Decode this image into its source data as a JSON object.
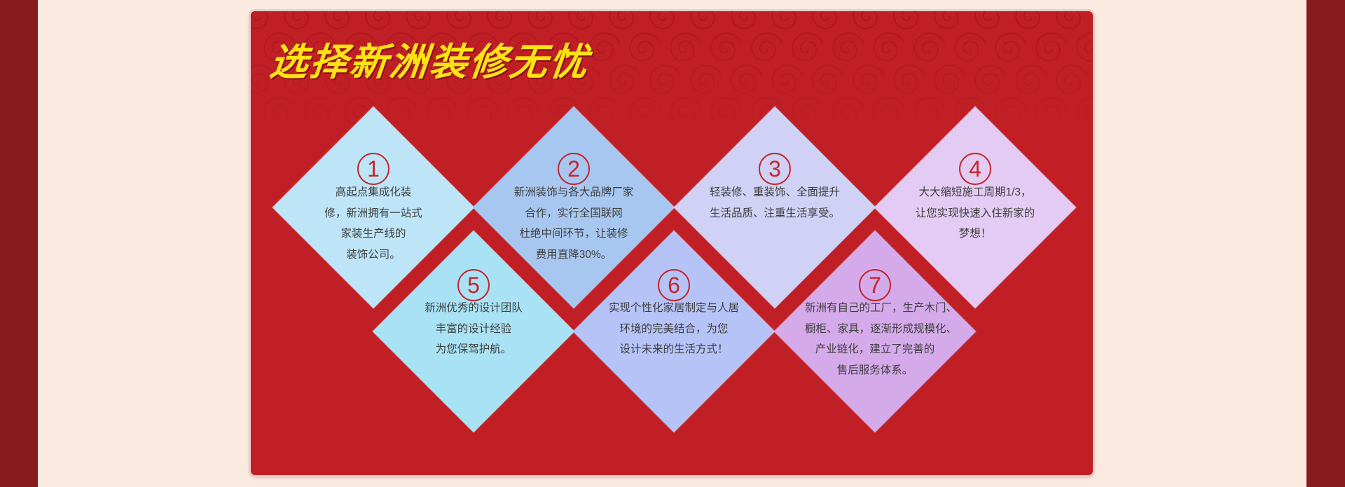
{
  "title": "选择新洲装修无忧",
  "colors": {
    "side_bar": "#871b20",
    "page_background": "#fbeae0",
    "panel": "#c02025",
    "title": "#ffe312",
    "number": "#c3262b",
    "text": "#3e3e3e"
  },
  "features": [
    {
      "number": "1",
      "color": "#bde5f7",
      "lines": [
        "高起点集成化装",
        "修，新洲拥有一站式",
        "家装生产线的",
        "装饰公司。"
      ]
    },
    {
      "number": "2",
      "color": "#a8c7f0",
      "lines": [
        "新洲装饰与各大品牌厂家",
        "合作，实行全国联网",
        "杜绝中间环节，让装修",
        "费用直降30%。"
      ]
    },
    {
      "number": "3",
      "color": "#cfd1f5",
      "lines": [
        "轻装修、重装饰、全面提升",
        "生活品质、注重生活享受。"
      ]
    },
    {
      "number": "4",
      "color": "#e3cbf3",
      "lines": [
        "大大缩短施工周期1/3，",
        "让您实现快速入住新家的",
        "梦想！"
      ]
    },
    {
      "number": "5",
      "color": "#a9e2f5",
      "lines": [
        "新洲优秀的设计团队",
        "丰富的设计经验",
        "为您保驾护航。"
      ]
    },
    {
      "number": "6",
      "color": "#b6c3f7",
      "lines": [
        "实现个性化家居制定与人居",
        "环境的完美结合，为您",
        "设计未来的生活方式！"
      ]
    },
    {
      "number": "7",
      "color": "#d4aaea",
      "lines": [
        "新洲有自己的工厂，生产木门、",
        "橱柜、家具，逐渐形成规模化、",
        "产业链化，建立了完善的",
        "售后服务体系。"
      ]
    }
  ]
}
